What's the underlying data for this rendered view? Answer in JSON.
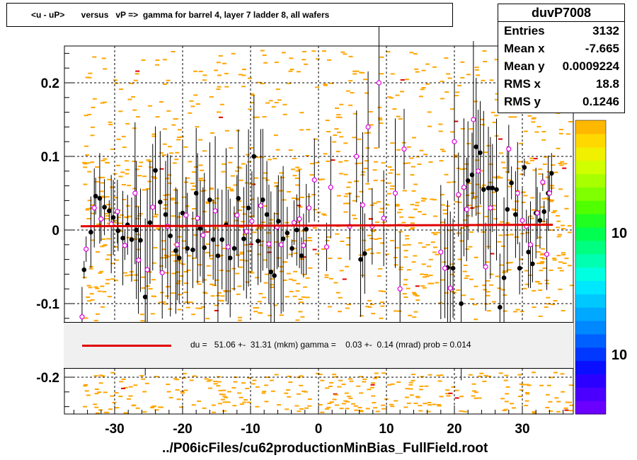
{
  "title": "<u - uP>       versus   vP =>  gamma for barrel 4, layer 7 ladder 8, all wafers",
  "stats": {
    "name": "duvP7008",
    "rows": [
      {
        "label": "Entries",
        "value": "3132"
      },
      {
        "label": "Mean x",
        "value": "-7.665"
      },
      {
        "label": "Mean y",
        "value": "0.0009224"
      },
      {
        "label": "RMS x",
        "value": "18.8"
      },
      {
        "label": "RMS y",
        "value": "0.1246"
      }
    ]
  },
  "fit": {
    "text": "du =   51.06 +-  31.31 (mkm) gamma =    0.03 +-  0.14 (mrad) prob = 0.014",
    "line_color": "#e00000"
  },
  "x_title": "../P06icFiles/cu62productionMinBias_FullField.root",
  "palette": {
    "labels": [
      "10",
      "10"
    ]
  },
  "colors": {
    "histogram": "#ffa500",
    "profile_black": "#000000",
    "profile_magenta": "#e000e0",
    "fit": "#e00000"
  },
  "chart_data": {
    "type": "scatter",
    "xlim": [
      -37,
      37
    ],
    "ylim": [
      -0.25,
      0.25
    ],
    "x_ticks": [
      -30,
      -20,
      -10,
      0,
      10,
      20,
      30
    ],
    "y_ticks": [
      -0.2,
      -0.1,
      0,
      0.1,
      0.2
    ],
    "x_tick_labels": [
      "-30",
      "-20",
      "-10",
      "0",
      "10",
      "20",
      "30"
    ],
    "y_tick_labels": [
      "-0.2",
      "-0.1",
      "0",
      "0.1",
      "0.2"
    ],
    "grid": true,
    "fit_line": {
      "x": [
        -35,
        34.5
      ],
      "y": [
        0.0051,
        0.0071
      ]
    },
    "series": [
      {
        "marker": "filled-circle",
        "points": [
          [
            -34.5,
            -0.054
          ],
          [
            -33.5,
            -0.003
          ],
          [
            -32.8,
            0.046
          ],
          [
            -32.2,
            0.043
          ],
          [
            -31.5,
            0.031
          ],
          [
            -30.8,
            0.026
          ],
          [
            -30.2,
            0.017
          ],
          [
            -29.5,
            -0.001
          ],
          [
            -28.8,
            -0.011
          ],
          [
            -28.1,
            0.007
          ],
          [
            -27.5,
            -0.013
          ],
          [
            -26.8,
            0.0
          ],
          [
            -26.2,
            -0.014
          ],
          [
            -25.5,
            -0.091
          ],
          [
            -24.8,
            0.01
          ],
          [
            -24.0,
            0.081
          ],
          [
            -23.3,
            0.038
          ],
          [
            -22.5,
            0.021
          ],
          [
            -21.8,
            -0.008
          ],
          [
            -21.0,
            -0.028
          ],
          [
            -20.5,
            -0.038
          ],
          [
            -20.0,
            0.023
          ],
          [
            -19.3,
            -0.025
          ],
          [
            -18.5,
            -0.027
          ],
          [
            -18.0,
            0.05
          ],
          [
            -17.4,
            0.002
          ],
          [
            -16.8,
            -0.024
          ],
          [
            -16.0,
            0.041
          ],
          [
            -15.5,
            -0.013
          ],
          [
            -14.8,
            -0.035
          ],
          [
            -14.2,
            -0.013
          ],
          [
            -13.6,
            0.007
          ],
          [
            -13.0,
            -0.038
          ],
          [
            -12.4,
            -0.025
          ],
          [
            -11.8,
            0.043
          ],
          [
            -11.0,
            -0.012
          ],
          [
            -10.3,
            0.03
          ],
          [
            -9.5,
            0.1
          ],
          [
            -8.9,
            -0.015
          ],
          [
            -8.2,
            0.041
          ],
          [
            -7.6,
            0.021
          ],
          [
            -7.0,
            -0.057
          ],
          [
            -6.5,
            -0.062
          ],
          [
            -5.9,
            0.012
          ],
          [
            -5.2,
            -0.012
          ],
          [
            -4.6,
            -0.004
          ],
          [
            -3.9,
            -0.025
          ],
          [
            -3.2,
            0.0
          ],
          [
            -2.5,
            -0.035
          ],
          [
            -1.8,
            0.001
          ],
          [
            6.2,
            -0.04
          ],
          [
            6.8,
            -0.032
          ],
          [
            19.0,
            -0.051
          ],
          [
            19.8,
            -0.052
          ],
          [
            21.0,
            -0.1
          ],
          [
            22.0,
            0.067
          ],
          [
            22.6,
            0.075
          ],
          [
            23.2,
            0.113
          ],
          [
            23.8,
            0.105
          ],
          [
            24.3,
            0.055
          ],
          [
            25.0,
            0.057
          ],
          [
            25.6,
            0.057
          ],
          [
            26.2,
            0.055
          ],
          [
            26.7,
            -0.105
          ],
          [
            27.3,
            -0.065
          ],
          [
            27.8,
            0.028
          ],
          [
            28.4,
            0.064
          ],
          [
            29.0,
            0.021
          ],
          [
            29.6,
            -0.052
          ],
          [
            30.3,
            0.085
          ],
          [
            30.9,
            -0.03
          ],
          [
            31.5,
            -0.046
          ],
          [
            32.0,
            0.023
          ],
          [
            32.6,
            0.013
          ],
          [
            33.2,
            0.025
          ],
          [
            33.8,
            0.05
          ],
          [
            34.3,
            0.077
          ]
        ]
      },
      {
        "marker": "open-circle",
        "points": [
          [
            -34.8,
            -0.118
          ],
          [
            -34.2,
            -0.026
          ],
          [
            -33.0,
            0.03
          ],
          [
            -32.0,
            0.015
          ],
          [
            -30.5,
            0.008
          ],
          [
            -29.6,
            0.025
          ],
          [
            -28.5,
            -0.021
          ],
          [
            -27.0,
            0.05
          ],
          [
            -26.5,
            -0.041
          ],
          [
            -25.2,
            -0.054
          ],
          [
            -24.4,
            0.031
          ],
          [
            -23.0,
            -0.058
          ],
          [
            -22.2,
            0.005
          ],
          [
            -20.8,
            -0.02
          ],
          [
            -19.5,
            0.02
          ],
          [
            -17.8,
            0.016
          ],
          [
            -17.0,
            -0.007
          ],
          [
            -15.2,
            0.026
          ],
          [
            -13.3,
            -0.023
          ],
          [
            -12.0,
            0.02
          ],
          [
            -10.6,
            -0.002
          ],
          [
            -9.8,
            0.012
          ],
          [
            -8.5,
            0.033
          ],
          [
            -7.3,
            -0.019
          ],
          [
            -6.1,
            0.004
          ],
          [
            -5.5,
            -0.02
          ],
          [
            -3.6,
            0.01
          ],
          [
            -2.8,
            0.015
          ],
          [
            -2.2,
            -0.021
          ],
          [
            -1.4,
            0.03
          ],
          [
            -0.6,
            0.068
          ],
          [
            1.2,
            -0.023
          ],
          [
            1.8,
            0.058
          ],
          [
            4.6,
            0.005
          ],
          [
            5.6,
            0.1
          ],
          [
            6.5,
            0.034
          ],
          [
            7.3,
            0.14
          ],
          [
            7.9,
            0.005
          ],
          [
            8.9,
            0.2
          ],
          [
            9.6,
            0.016
          ],
          [
            11.3,
            0.05
          ],
          [
            12.0,
            -0.08
          ],
          [
            12.6,
            0.11
          ],
          [
            18.0,
            -0.03
          ],
          [
            18.6,
            -0.052
          ],
          [
            19.4,
            -0.079
          ],
          [
            20.0,
            0.12
          ],
          [
            20.6,
            0.048
          ],
          [
            21.4,
            0.058
          ],
          [
            21.8,
            0.028
          ],
          [
            22.8,
            0.15
          ],
          [
            23.5,
            0.08
          ],
          [
            24.6,
            -0.05
          ],
          [
            25.3,
            0.03
          ],
          [
            28.0,
            0.11
          ],
          [
            29.3,
            0.05
          ],
          [
            30.0,
            0.013
          ],
          [
            30.6,
            0.005
          ],
          [
            31.2,
            -0.02
          ],
          [
            32.2,
            0.023
          ],
          [
            33.0,
            0.065
          ],
          [
            33.6,
            -0.033
          ],
          [
            34.0,
            0.05
          ]
        ]
      }
    ]
  }
}
